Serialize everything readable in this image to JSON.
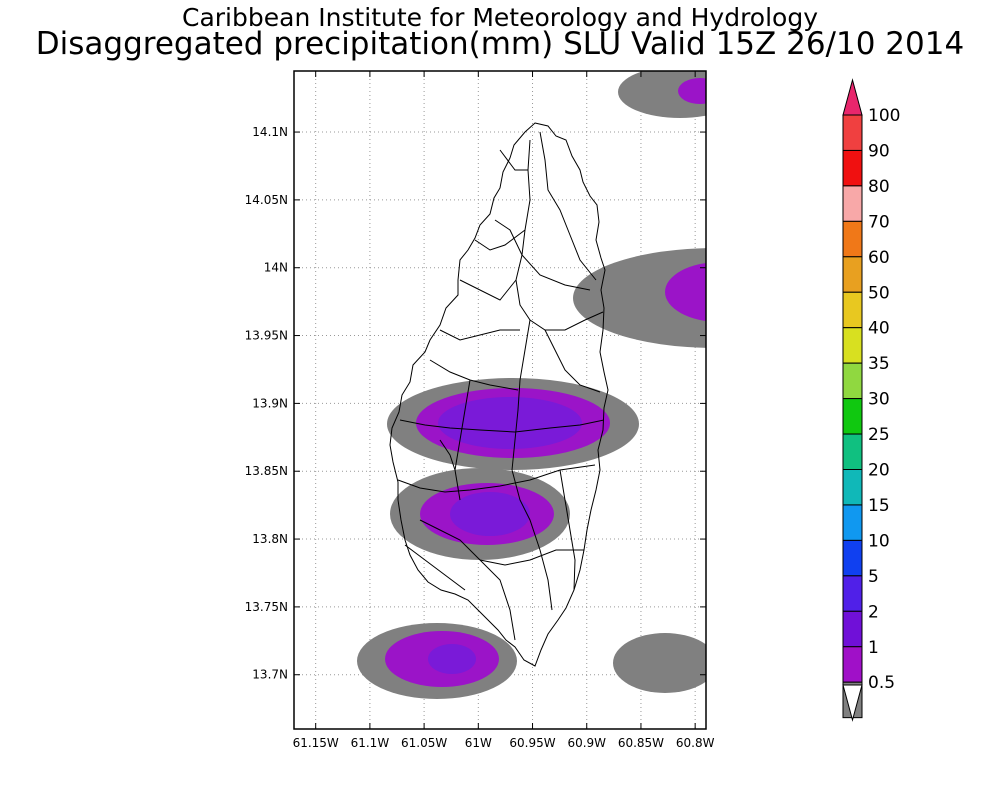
{
  "header": {
    "title_line1": "Caribbean Institute for Meteorology and Hydrology",
    "title_line2": "Disaggregated precipitation(mm) SLU Valid 15Z 26/10 2014"
  },
  "map": {
    "lon_range": [
      -61.17,
      -60.79
    ],
    "lat_range": [
      13.66,
      14.145
    ],
    "lon_ticks": [
      {
        "value": -61.15,
        "label": "61.15W"
      },
      {
        "value": -61.1,
        "label": "61.1W"
      },
      {
        "value": -61.05,
        "label": "61.05W"
      },
      {
        "value": -61.0,
        "label": "61W"
      },
      {
        "value": -60.95,
        "label": "60.95W"
      },
      {
        "value": -60.9,
        "label": "60.9W"
      },
      {
        "value": -60.85,
        "label": "60.85W"
      },
      {
        "value": -60.8,
        "label": "60.8W"
      }
    ],
    "lat_ticks": [
      {
        "value": 14.1,
        "label": "14.1N"
      },
      {
        "value": 14.05,
        "label": "14.05N"
      },
      {
        "value": 14.0,
        "label": "14N"
      },
      {
        "value": 13.95,
        "label": "13.95N"
      },
      {
        "value": 13.9,
        "label": "13.9N"
      },
      {
        "value": 13.85,
        "label": "13.85N"
      },
      {
        "value": 13.8,
        "label": "13.8N"
      },
      {
        "value": 13.75,
        "label": "13.75N"
      },
      {
        "value": 13.7,
        "label": "13.7N"
      }
    ],
    "grid": "dotted",
    "colors": {
      "band_0_5_to_1": "#808080",
      "band_1_to_2": "#9b14c8",
      "band_2_to_5": "#7a1ad8"
    }
  },
  "colorbar": {
    "labels": [
      "100",
      "90",
      "80",
      "70",
      "60",
      "50",
      "40",
      "35",
      "30",
      "25",
      "20",
      "15",
      "10",
      "5",
      "2",
      "1",
      "0.5"
    ],
    "colors": [
      "#e8266c",
      "#f04040",
      "#f01010",
      "#f8a8a8",
      "#f07818",
      "#e8a020",
      "#e8c820",
      "#d8e020",
      "#90d840",
      "#10c810",
      "#10c080",
      "#10b8b8",
      "#1098f0",
      "#1040f0",
      "#5020e8",
      "#7010d8",
      "#a010c8",
      "#808080",
      "#ffffff"
    ]
  }
}
